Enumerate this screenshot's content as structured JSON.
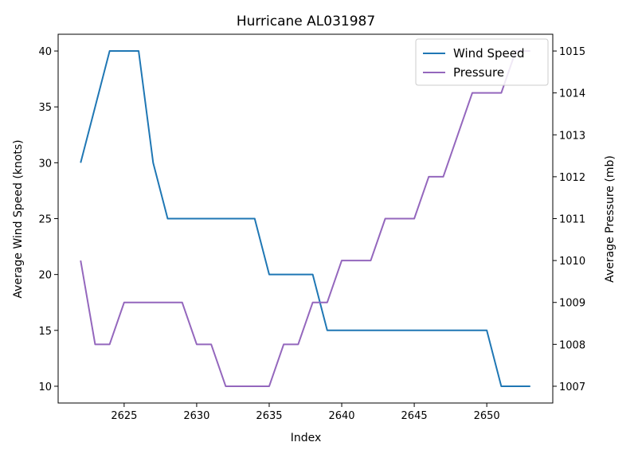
{
  "chart_data": {
    "type": "line",
    "title": "Hurricane AL031987",
    "xlabel": "Index",
    "ylabel_left": "Average Wind Speed (knots)",
    "ylabel_right": "Average Pressure (mb)",
    "xlim": [
      2620.45,
      2654.55
    ],
    "ylim_left": [
      8.5,
      41.5
    ],
    "ylim_right": [
      1006.6,
      1015.4
    ],
    "xticks": [
      2625,
      2630,
      2635,
      2640,
      2645,
      2650
    ],
    "yticks_left": [
      10,
      15,
      20,
      25,
      30,
      35,
      40
    ],
    "yticks_right": [
      1007,
      1008,
      1009,
      1010,
      1011,
      1012,
      1013,
      1014,
      1015
    ],
    "legend_position": "upper right",
    "grid": false,
    "x": [
      2622,
      2623,
      2624,
      2625,
      2626,
      2627,
      2628,
      2629,
      2630,
      2631,
      2632,
      2633,
      2634,
      2635,
      2636,
      2637,
      2638,
      2639,
      2640,
      2641,
      2642,
      2643,
      2644,
      2645,
      2646,
      2647,
      2648,
      2649,
      2650,
      2651,
      2652,
      2653
    ],
    "series": [
      {
        "name": "Wind Speed",
        "axis": "left",
        "color": "#1f77b4",
        "values": [
          30,
          35,
          40,
          40,
          40,
          30,
          25,
          25,
          25,
          25,
          25,
          25,
          25,
          20,
          20,
          20,
          20,
          15,
          15,
          15,
          15,
          15,
          15,
          15,
          15,
          15,
          15,
          15,
          15,
          10,
          10,
          10
        ]
      },
      {
        "name": "Pressure",
        "axis": "right",
        "color": "#9467bd",
        "values": [
          1010,
          1008,
          1008,
          1009,
          1009,
          1009,
          1009,
          1009,
          1008,
          1008,
          1007,
          1007,
          1007,
          1007,
          1008,
          1008,
          1009,
          1009,
          1010,
          1010,
          1010,
          1011,
          1011,
          1011,
          1012,
          1012,
          1013,
          1014,
          1014,
          1014,
          1015,
          1015
        ]
      }
    ]
  }
}
